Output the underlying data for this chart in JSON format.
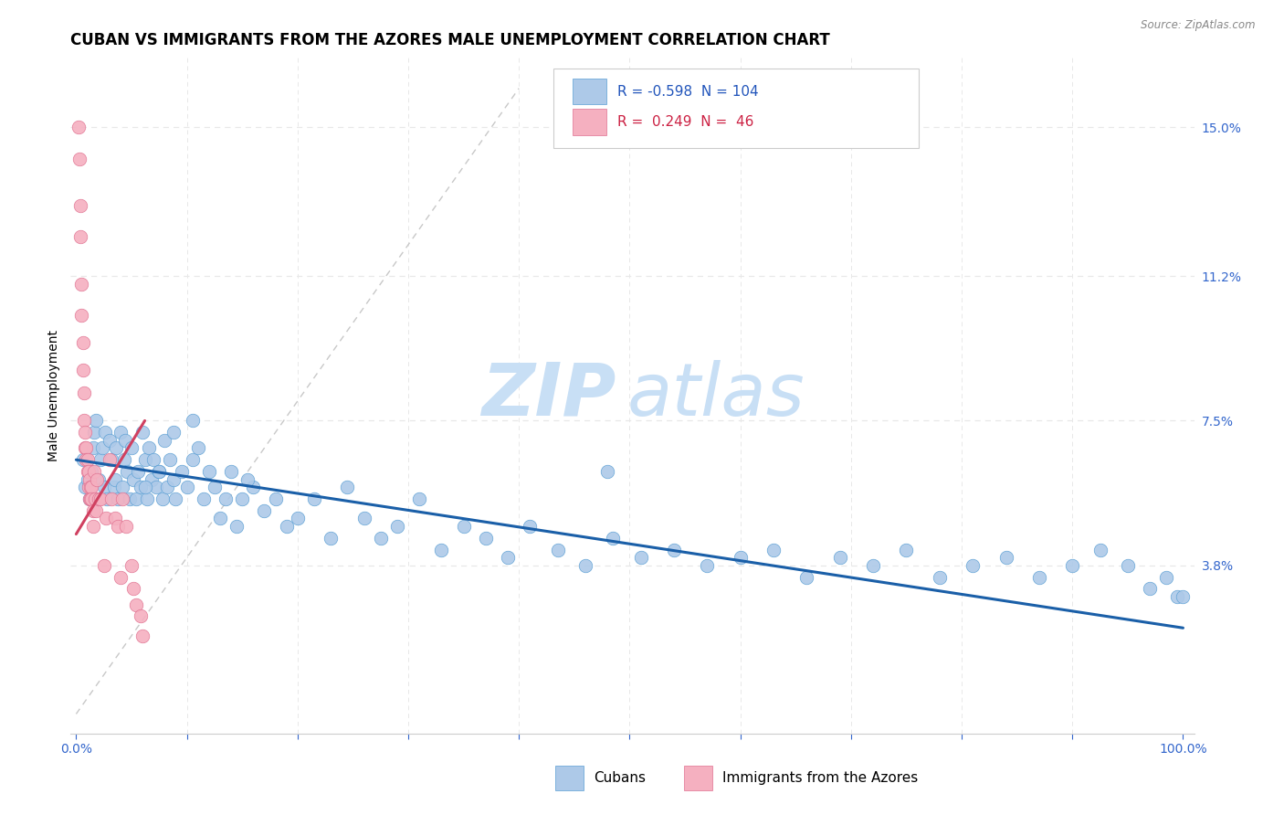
{
  "title": "CUBAN VS IMMIGRANTS FROM THE AZORES MALE UNEMPLOYMENT CORRELATION CHART",
  "source": "Source: ZipAtlas.com",
  "ylabel": "Male Unemployment",
  "ytick_values": [
    0.038,
    0.075,
    0.112,
    0.15
  ],
  "ytick_labels": [
    "3.8%",
    "7.5%",
    "11.2%",
    "15.0%"
  ],
  "xlim": [
    -0.005,
    1.01
  ],
  "ylim": [
    -0.005,
    0.168
  ],
  "legend_blue_R": "-0.598",
  "legend_blue_N": "104",
  "legend_pink_R": "0.249",
  "legend_pink_N": "46",
  "blue_color": "#adc9e8",
  "blue_edge_color": "#5a9fd4",
  "blue_line_color": "#1a5fa8",
  "pink_color": "#f5b0c0",
  "pink_edge_color": "#e07090",
  "pink_line_color": "#d04060",
  "watermark_zip_color": "#c8dff5",
  "watermark_atlas_color": "#c8dff5",
  "bg_color": "#ffffff",
  "grid_color": "#e8e8e8",
  "title_fontsize": 12,
  "tick_fontsize": 10,
  "label_fontsize": 10,
  "blue_scatter_x": [
    0.006,
    0.008,
    0.01,
    0.012,
    0.014,
    0.015,
    0.016,
    0.018,
    0.018,
    0.02,
    0.022,
    0.024,
    0.025,
    0.026,
    0.028,
    0.03,
    0.032,
    0.034,
    0.035,
    0.036,
    0.038,
    0.04,
    0.042,
    0.043,
    0.044,
    0.046,
    0.048,
    0.05,
    0.052,
    0.054,
    0.056,
    0.058,
    0.06,
    0.062,
    0.064,
    0.066,
    0.068,
    0.07,
    0.072,
    0.075,
    0.078,
    0.08,
    0.082,
    0.085,
    0.088,
    0.09,
    0.095,
    0.1,
    0.105,
    0.11,
    0.115,
    0.12,
    0.125,
    0.13,
    0.135,
    0.14,
    0.145,
    0.15,
    0.16,
    0.17,
    0.18,
    0.19,
    0.2,
    0.215,
    0.23,
    0.245,
    0.26,
    0.275,
    0.29,
    0.31,
    0.33,
    0.35,
    0.37,
    0.39,
    0.41,
    0.435,
    0.46,
    0.485,
    0.51,
    0.54,
    0.57,
    0.6,
    0.63,
    0.66,
    0.69,
    0.72,
    0.75,
    0.78,
    0.81,
    0.84,
    0.87,
    0.9,
    0.925,
    0.95,
    0.97,
    0.985,
    0.995,
    1.0,
    0.062,
    0.075,
    0.088,
    0.105,
    0.155,
    0.48
  ],
  "blue_scatter_y": [
    0.065,
    0.058,
    0.06,
    0.055,
    0.062,
    0.068,
    0.072,
    0.055,
    0.075,
    0.06,
    0.065,
    0.068,
    0.058,
    0.072,
    0.055,
    0.07,
    0.065,
    0.058,
    0.06,
    0.068,
    0.055,
    0.072,
    0.058,
    0.065,
    0.07,
    0.062,
    0.055,
    0.068,
    0.06,
    0.055,
    0.062,
    0.058,
    0.072,
    0.065,
    0.055,
    0.068,
    0.06,
    0.065,
    0.058,
    0.062,
    0.055,
    0.07,
    0.058,
    0.065,
    0.06,
    0.055,
    0.062,
    0.058,
    0.065,
    0.068,
    0.055,
    0.062,
    0.058,
    0.05,
    0.055,
    0.062,
    0.048,
    0.055,
    0.058,
    0.052,
    0.055,
    0.048,
    0.05,
    0.055,
    0.045,
    0.058,
    0.05,
    0.045,
    0.048,
    0.055,
    0.042,
    0.048,
    0.045,
    0.04,
    0.048,
    0.042,
    0.038,
    0.045,
    0.04,
    0.042,
    0.038,
    0.04,
    0.042,
    0.035,
    0.04,
    0.038,
    0.042,
    0.035,
    0.038,
    0.04,
    0.035,
    0.038,
    0.042,
    0.038,
    0.032,
    0.035,
    0.03,
    0.03,
    0.058,
    0.062,
    0.072,
    0.075,
    0.06,
    0.062
  ],
  "pink_scatter_x": [
    0.002,
    0.003,
    0.004,
    0.004,
    0.005,
    0.005,
    0.006,
    0.006,
    0.007,
    0.007,
    0.008,
    0.008,
    0.009,
    0.009,
    0.01,
    0.01,
    0.011,
    0.011,
    0.012,
    0.012,
    0.013,
    0.013,
    0.014,
    0.014,
    0.015,
    0.015,
    0.016,
    0.017,
    0.018,
    0.019,
    0.02,
    0.022,
    0.025,
    0.027,
    0.03,
    0.032,
    0.035,
    0.038,
    0.04,
    0.042,
    0.045,
    0.05,
    0.052,
    0.054,
    0.058,
    0.06
  ],
  "pink_scatter_y": [
    0.15,
    0.142,
    0.13,
    0.122,
    0.11,
    0.102,
    0.095,
    0.088,
    0.082,
    0.075,
    0.072,
    0.068,
    0.068,
    0.065,
    0.065,
    0.062,
    0.062,
    0.058,
    0.06,
    0.055,
    0.058,
    0.055,
    0.058,
    0.055,
    0.052,
    0.048,
    0.062,
    0.055,
    0.052,
    0.06,
    0.055,
    0.055,
    0.038,
    0.05,
    0.065,
    0.055,
    0.05,
    0.048,
    0.035,
    0.055,
    0.048,
    0.038,
    0.032,
    0.028,
    0.025,
    0.02
  ],
  "blue_trend_x": [
    0.0,
    1.0
  ],
  "blue_trend_y": [
    0.065,
    0.022
  ],
  "pink_trend_x": [
    0.0,
    0.062
  ],
  "pink_trend_y": [
    0.046,
    0.075
  ],
  "diag_line_x": [
    0.0,
    0.4
  ],
  "diag_line_y": [
    0.0,
    0.16
  ]
}
